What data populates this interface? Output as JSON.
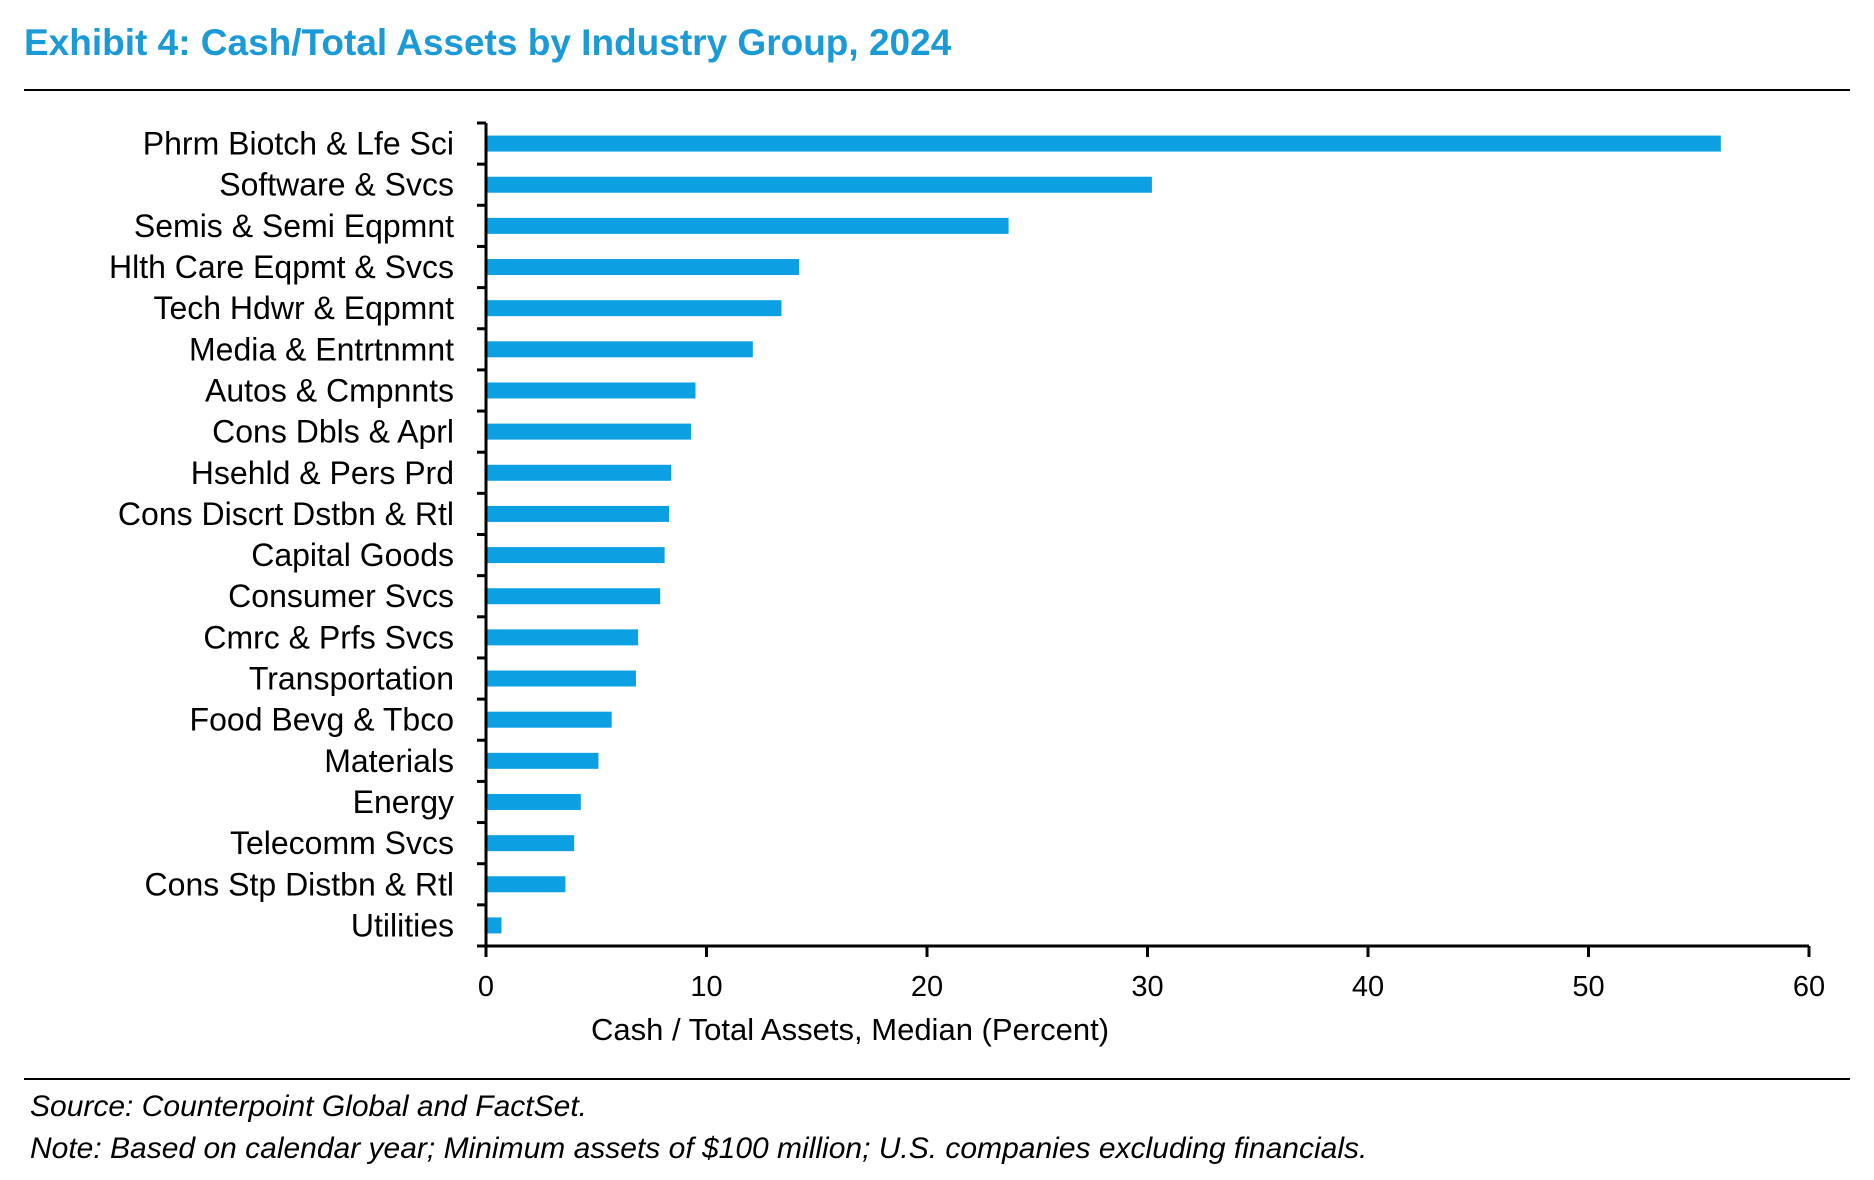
{
  "header": {
    "title": "Exhibit 4: Cash/Total Assets by Industry Group, 2024"
  },
  "footer": {
    "source": "Source: Counterpoint Global and FactSet.",
    "note": "Note: Based on calendar year; Minimum assets of $100 million; U.S. companies excluding financials."
  },
  "colors": {
    "title": "#1a9ad6",
    "bar": "#0ca0e3",
    "axis": "#000000"
  },
  "chart_data": {
    "type": "bar",
    "orientation": "horizontal",
    "xlabel": "Cash / Total Assets, Median (Percent)",
    "xlim": [
      0,
      60
    ],
    "xticks": [
      0,
      10,
      20,
      30,
      40,
      50,
      60
    ],
    "grid": false,
    "legend": false,
    "categories": [
      "Phrm Biotch & Lfe Sci",
      "Software & Svcs",
      "Semis & Semi Eqpmnt",
      "Hlth Care Eqpmt & Svcs",
      "Tech Hdwr & Eqpmnt",
      "Media & Entrtnmnt",
      "Autos & Cmpnnts",
      "Cons Dbls & Aprl",
      "Hsehld & Pers Prd",
      "Cons Discrt Dstbn & Rtl",
      "Capital Goods",
      "Consumer Svcs",
      "Cmrc & Prfs Svcs",
      "Transportation",
      "Food Bevg & Tbco",
      "Materials",
      "Energy",
      "Telecomm Svcs",
      "Cons Stp Distbn & Rtl",
      "Utilities"
    ],
    "values": [
      56.0,
      30.2,
      23.7,
      14.2,
      13.4,
      12.1,
      9.5,
      9.3,
      8.4,
      8.3,
      8.1,
      7.9,
      6.9,
      6.8,
      5.7,
      5.1,
      4.3,
      4.0,
      3.6,
      0.7
    ]
  }
}
